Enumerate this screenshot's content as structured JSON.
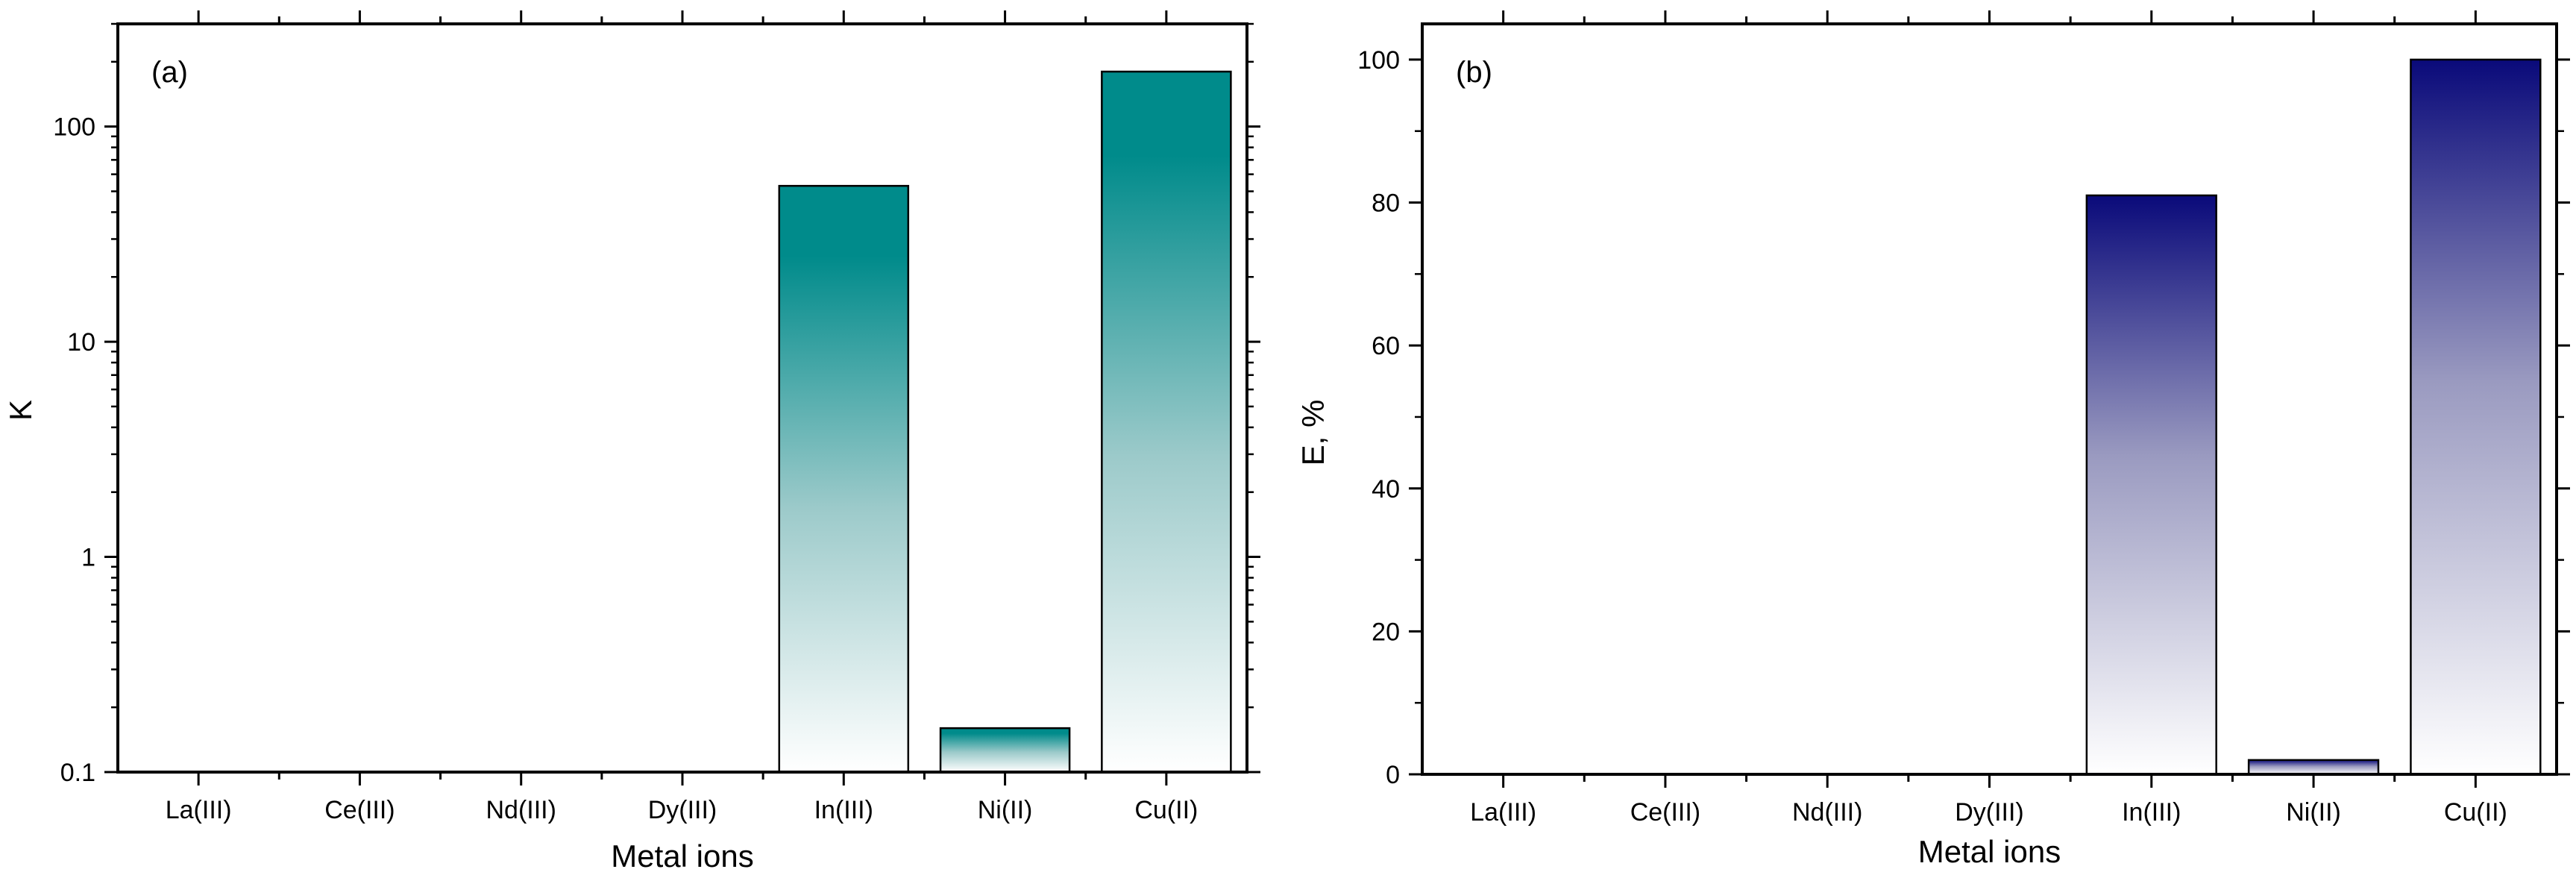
{
  "chart_data": [
    {
      "type": "bar",
      "panel_label": "(a)",
      "categories": [
        "La(III)",
        "Ce(III)",
        "Nd(III)",
        "Dy(III)",
        "In(III)",
        "Ni(II)",
        "Cu(II)"
      ],
      "values": [
        null,
        null,
        null,
        null,
        53,
        0.16,
        180
      ],
      "xlabel": "Metal ions",
      "ylabel": "K",
      "yscale": "log",
      "ylim": [
        0.1,
        300
      ],
      "yticks": [
        {
          "value": 0.1,
          "label": "0.1"
        },
        {
          "value": 1,
          "label": "1"
        },
        {
          "value": 10,
          "label": "10"
        },
        {
          "value": 100,
          "label": "100"
        }
      ],
      "grid": false,
      "color": "#008B8B"
    },
    {
      "type": "bar",
      "panel_label": "(b)",
      "categories": [
        "La(III)",
        "Ce(III)",
        "Nd(III)",
        "Dy(III)",
        "In(III)",
        "Ni(II)",
        "Cu(II)"
      ],
      "values": [
        0,
        0,
        0,
        0,
        81,
        2,
        100
      ],
      "xlabel": "Metal ions",
      "ylabel": "E, %",
      "yscale": "linear",
      "ylim": [
        0,
        105
      ],
      "yticks": [
        {
          "value": 0,
          "label": "0"
        },
        {
          "value": 20,
          "label": "20"
        },
        {
          "value": 40,
          "label": "40"
        },
        {
          "value": 60,
          "label": "60"
        },
        {
          "value": 80,
          "label": "80"
        },
        {
          "value": 100,
          "label": "100"
        }
      ],
      "grid": false,
      "color": "#0A0A7A"
    }
  ]
}
